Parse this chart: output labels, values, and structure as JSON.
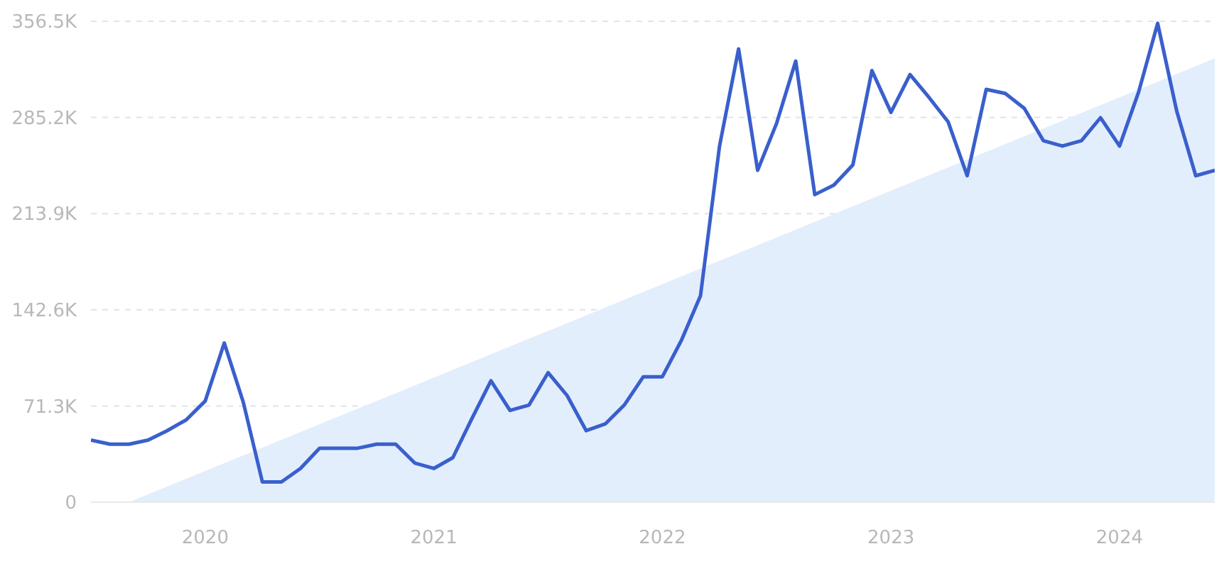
{
  "chart_data": {
    "type": "line",
    "x": [
      "2019-07",
      "2019-08",
      "2019-09",
      "2019-10",
      "2019-11",
      "2019-12",
      "2020-01",
      "2020-02",
      "2020-03",
      "2020-04",
      "2020-05",
      "2020-06",
      "2020-07",
      "2020-08",
      "2020-09",
      "2020-10",
      "2020-11",
      "2020-12",
      "2021-01",
      "2021-02",
      "2021-03",
      "2021-04",
      "2021-05",
      "2021-06",
      "2021-07",
      "2021-08",
      "2021-09",
      "2021-10",
      "2021-11",
      "2021-12",
      "2022-01",
      "2022-02",
      "2022-03",
      "2022-04",
      "2022-05",
      "2022-06",
      "2022-07",
      "2022-08",
      "2022-09",
      "2022-10",
      "2022-11",
      "2022-12",
      "2023-01",
      "2023-02",
      "2023-03",
      "2023-04",
      "2023-05",
      "2023-06",
      "2023-07",
      "2023-08",
      "2023-09",
      "2023-10",
      "2023-11",
      "2023-12",
      "2024-01",
      "2024-02",
      "2024-03",
      "2024-04",
      "2024-05",
      "2024-06"
    ],
    "series": [
      {
        "type": "area",
        "x": [
          "2019-09",
          "2024-06"
        ],
        "values": [
          0,
          329
        ],
        "color": "#e3eefc"
      },
      {
        "color": "#3a5fcd",
        "values": [
          46,
          43,
          43,
          46,
          53,
          61,
          75,
          118,
          74,
          15,
          15,
          25,
          40,
          40,
          40,
          43,
          43,
          29,
          25,
          33,
          62,
          90,
          68,
          72,
          96,
          79,
          53,
          58,
          72,
          93,
          93,
          120,
          153,
          264,
          336,
          246,
          281,
          327,
          228,
          235,
          250,
          320,
          289,
          317,
          300,
          282,
          242,
          306,
          303,
          292,
          268,
          264,
          268,
          285,
          264,
          304,
          355,
          290,
          242,
          246
        ]
      }
    ],
    "xlim": [
      "2019-07",
      "2024-06"
    ],
    "xticks": [
      {
        "value": "2020-01",
        "label": "2020"
      },
      {
        "value": "2021-01",
        "label": "2021"
      },
      {
        "value": "2022-01",
        "label": "2022"
      },
      {
        "value": "2023-01",
        "label": "2023"
      },
      {
        "value": "2024-01",
        "label": "2024"
      }
    ],
    "ylim": [
      0,
      356.5
    ],
    "yticks": [
      0,
      {
        "value": 71.3,
        "label": "71.3K"
      },
      {
        "value": 142.6,
        "label": "142.6K"
      },
      {
        "value": 213.9,
        "label": "213.9K"
      },
      {
        "value": 285.2,
        "label": "285.2K"
      },
      {
        "value": 356.5,
        "label": "356.5K"
      }
    ],
    "grid": "y",
    "legend": false,
    "marker": "none",
    "line_style": "solid"
  }
}
